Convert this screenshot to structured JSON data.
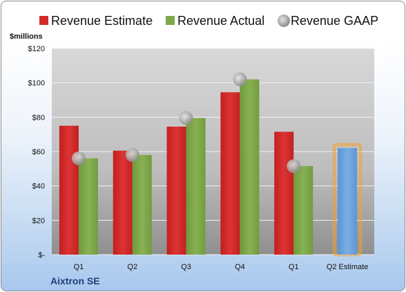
{
  "chart_data": {
    "type": "bar",
    "ylabel": "$millions",
    "ylim": [
      0,
      120
    ],
    "yticks": [
      {
        "value": 0,
        "label": "$-"
      },
      {
        "value": 20,
        "label": "$20"
      },
      {
        "value": 40,
        "label": "$40"
      },
      {
        "value": 60,
        "label": "$60"
      },
      {
        "value": 80,
        "label": "$80"
      },
      {
        "value": 100,
        "label": "$100"
      },
      {
        "value": 120,
        "label": "$120"
      }
    ],
    "categories": [
      "Q1",
      "Q2",
      "Q3",
      "Q4",
      "Q1",
      "Q2 Estimate"
    ],
    "legend": {
      "position": "top"
    },
    "grid": true,
    "series": [
      {
        "name": "Revenue Estimate",
        "type": "bar",
        "color": "#d42a2a",
        "values": [
          75,
          60.5,
          74.5,
          94.5,
          71.5,
          null
        ]
      },
      {
        "name": "Revenue Actual",
        "type": "bar",
        "color": "#7fa84a",
        "values": [
          56,
          58,
          79.5,
          102,
          51.5,
          null
        ]
      },
      {
        "name": "Revenue GAAP",
        "type": "scatter",
        "color": "#a0a0a0",
        "values": [
          56,
          58,
          79.5,
          102,
          51.5,
          null
        ]
      },
      {
        "name": "",
        "type": "bar",
        "color": "#6a9fd8",
        "highlight": "#f5a030",
        "values": [
          null,
          null,
          null,
          null,
          null,
          62
        ]
      }
    ]
  },
  "company": "Aixtron SE"
}
